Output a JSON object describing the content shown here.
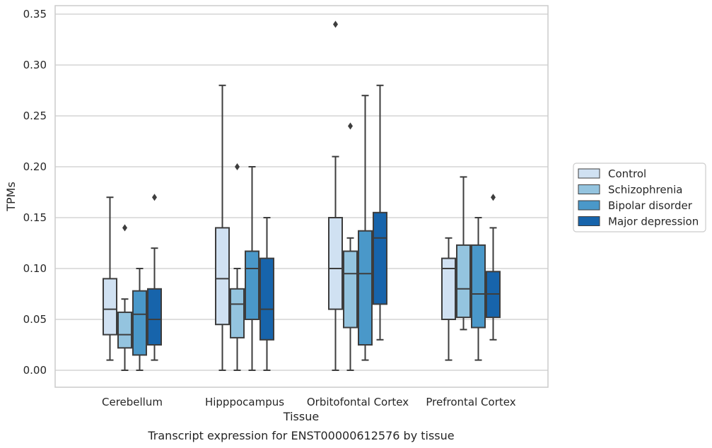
{
  "chart_data": {
    "type": "boxplot",
    "caption": "Transcript expression for ENST00000612576 by tissue",
    "xlabel": "Tissue",
    "ylabel": "TPMs",
    "ylim": [
      -0.017,
      0.357
    ],
    "yticks": [
      "0.00",
      "0.05",
      "0.10",
      "0.15",
      "0.20",
      "0.25",
      "0.30",
      "0.35"
    ],
    "ytick_values": [
      0,
      0.05,
      0.1,
      0.15,
      0.2,
      0.25,
      0.3,
      0.35
    ],
    "grid": "horizontal",
    "legend_position": "right",
    "categories": [
      "Cerebellum",
      "Hipppocampus",
      "Orbitofontal Cortex",
      "Prefrontal Cortex"
    ],
    "series": [
      {
        "name": "Control",
        "color": "#d0e1f2",
        "boxes": [
          {
            "whislo": 0.01,
            "q1": 0.035,
            "med": 0.06,
            "q3": 0.09,
            "whishi": 0.17,
            "fliers": []
          },
          {
            "whislo": 0.0,
            "q1": 0.045,
            "med": 0.09,
            "q3": 0.14,
            "whishi": 0.28,
            "fliers": []
          },
          {
            "whislo": 0.0,
            "q1": 0.06,
            "med": 0.1,
            "q3": 0.15,
            "whishi": 0.21,
            "fliers": [
              0.34
            ]
          },
          {
            "whislo": 0.01,
            "q1": 0.05,
            "med": 0.1,
            "q3": 0.11,
            "whishi": 0.13,
            "fliers": []
          }
        ]
      },
      {
        "name": "Schizophrenia",
        "color": "#94c4df",
        "boxes": [
          {
            "whislo": 0.0,
            "q1": 0.022,
            "med": 0.035,
            "q3": 0.057,
            "whishi": 0.07,
            "fliers": [
              0.14
            ]
          },
          {
            "whislo": 0.0,
            "q1": 0.032,
            "med": 0.065,
            "q3": 0.08,
            "whishi": 0.1,
            "fliers": [
              0.2
            ]
          },
          {
            "whislo": 0.0,
            "q1": 0.042,
            "med": 0.095,
            "q3": 0.117,
            "whishi": 0.13,
            "fliers": [
              0.24
            ]
          },
          {
            "whislo": 0.04,
            "q1": 0.052,
            "med": 0.08,
            "q3": 0.123,
            "whishi": 0.19,
            "fliers": []
          }
        ]
      },
      {
        "name": "Bipolar disorder",
        "color": "#4a98c9",
        "boxes": [
          {
            "whislo": 0.0,
            "q1": 0.015,
            "med": 0.055,
            "q3": 0.078,
            "whishi": 0.1,
            "fliers": []
          },
          {
            "whislo": 0.0,
            "q1": 0.05,
            "med": 0.1,
            "q3": 0.117,
            "whishi": 0.2,
            "fliers": []
          },
          {
            "whislo": 0.01,
            "q1": 0.025,
            "med": 0.095,
            "q3": 0.137,
            "whishi": 0.27,
            "fliers": []
          },
          {
            "whislo": 0.01,
            "q1": 0.042,
            "med": 0.075,
            "q3": 0.123,
            "whishi": 0.15,
            "fliers": []
          }
        ]
      },
      {
        "name": "Major depression",
        "color": "#1764ab",
        "boxes": [
          {
            "whislo": 0.01,
            "q1": 0.025,
            "med": 0.05,
            "q3": 0.08,
            "whishi": 0.12,
            "fliers": [
              0.17
            ]
          },
          {
            "whislo": 0.0,
            "q1": 0.03,
            "med": 0.06,
            "q3": 0.11,
            "whishi": 0.15,
            "fliers": []
          },
          {
            "whislo": 0.03,
            "q1": 0.065,
            "med": 0.13,
            "q3": 0.155,
            "whishi": 0.28,
            "fliers": []
          },
          {
            "whislo": 0.03,
            "q1": 0.052,
            "med": 0.075,
            "q3": 0.097,
            "whishi": 0.14,
            "fliers": [
              0.17
            ]
          }
        ]
      }
    ]
  }
}
